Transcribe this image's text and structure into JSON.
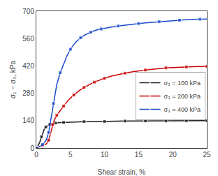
{
  "chart_data": {
    "type": "line",
    "xlabel": "Shear strain, %",
    "ylabel": "σ₁ − σ₃, kPa",
    "xlim": [
      0,
      25
    ],
    "ylim": [
      0,
      700
    ],
    "xticks": [
      0,
      5,
      10,
      15,
      20,
      25
    ],
    "yticks": [
      0,
      140,
      280,
      420,
      560,
      700
    ],
    "grid": false,
    "legend": "right",
    "series": [
      {
        "name": "σ₃ = 100 kPa",
        "color": "#1a1a1a",
        "marker": "square",
        "x": [
          0,
          0.25,
          0.5,
          0.75,
          1.0,
          1.2,
          1.4,
          1.6,
          1.8,
          2.0,
          2.2,
          2.5,
          2.8,
          3.0,
          3.5,
          4.0,
          5.0,
          6.0,
          7.0,
          8.0,
          9.0,
          10.0,
          11.0,
          12.0,
          13.0,
          14.0,
          15.0,
          16.0,
          17.0,
          18.0,
          19.0,
          20.0,
          21.0,
          22.0,
          23.0,
          24.0,
          25.0
        ],
        "values": [
          0,
          12,
          30,
          58,
          85,
          100,
          108,
          114,
          118,
          121,
          123,
          126,
          128,
          129,
          130,
          131,
          133,
          134,
          135,
          135,
          136,
          136,
          137,
          137,
          138,
          138,
          138,
          139,
          139,
          139,
          139,
          139,
          140,
          140,
          140,
          140,
          140
        ]
      },
      {
        "name": "σ₃ = 200 kPa",
        "color": "#cc0000",
        "marker": "square",
        "x": [
          0,
          0.3,
          0.6,
          0.9,
          1.2,
          1.5,
          1.8,
          2.0,
          2.2,
          2.4,
          2.6,
          2.8,
          3.0,
          3.3,
          3.6,
          4.0,
          4.5,
          5.0,
          5.5,
          6.0,
          6.5,
          7.0,
          7.5,
          8.0,
          8.5,
          9.0,
          9.5,
          10.0,
          11.0,
          12.0,
          13.0,
          14.0,
          15.0,
          16.0,
          17.0,
          18.0,
          19.0,
          20.0,
          21.0,
          22.0,
          23.0,
          24.0,
          25.0
        ],
        "values": [
          0,
          4,
          8,
          12,
          16,
          22,
          40,
          65,
          95,
          120,
          140,
          155,
          168,
          182,
          196,
          215,
          237,
          256,
          272,
          286,
          299,
          310,
          320,
          329,
          337,
          344,
          351,
          357,
          368,
          376,
          383,
          389,
          395,
          399,
          403,
          407,
          410,
          412,
          414,
          415,
          416,
          417,
          418
        ]
      },
      {
        "name": "σ₃ = 400 kPa",
        "color": "#1a4acc",
        "marker": "square",
        "x": [
          0,
          0.3,
          0.6,
          0.9,
          1.2,
          1.5,
          1.8,
          2.0,
          2.2,
          2.5,
          2.8,
          3.0,
          3.5,
          4.0,
          4.5,
          5.0,
          5.5,
          6.0,
          6.5,
          7.0,
          7.5,
          8.0,
          8.5,
          9.0,
          9.5,
          10.0,
          11.0,
          12.0,
          13.0,
          14.0,
          15.0,
          16.0,
          17.0,
          18.0,
          19.0,
          20.0,
          21.0,
          22.0,
          23.0,
          24.0,
          25.0
        ],
        "values": [
          0,
          4,
          10,
          18,
          28,
          45,
          80,
          118,
          162,
          228,
          288,
          325,
          385,
          432,
          472,
          505,
          530,
          549,
          564,
          576,
          585,
          593,
          600,
          605,
          609,
          613,
          619,
          624,
          629,
          633,
          637,
          640,
          643,
          646,
          649,
          652,
          654,
          656,
          658,
          659,
          660
        ]
      }
    ]
  }
}
